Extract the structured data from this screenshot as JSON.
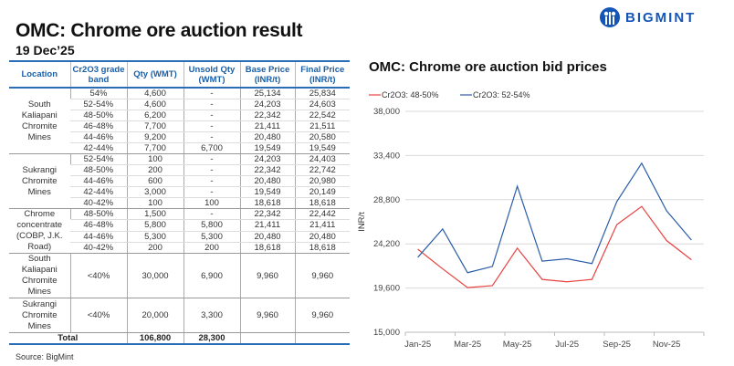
{
  "header": {
    "title": "OMC: Chrome ore auction result",
    "date": "19 Dec’25",
    "brand": "BIGMINT"
  },
  "table": {
    "columns": [
      "Location",
      "Cr2O3 grade band",
      "Qty (WMT)",
      "Unsold Qty (WMT)",
      "Base Price (INR/t)",
      "Final Price (INR/t)"
    ],
    "groups": [
      {
        "location": "South Kaliapani Chromite Mines",
        "rows": [
          [
            "54%",
            "4,600",
            "-",
            "25,134",
            "25,834"
          ],
          [
            "52-54%",
            "4,600",
            "-",
            "24,203",
            "24,603"
          ],
          [
            "48-50%",
            "6,200",
            "-",
            "22,342",
            "22,542"
          ],
          [
            "46-48%",
            "7,700",
            "-",
            "21,411",
            "21,511"
          ],
          [
            "44-46%",
            "9,200",
            "-",
            "20,480",
            "20,580"
          ],
          [
            "42-44%",
            "7,700",
            "6,700",
            "19,549",
            "19,549"
          ]
        ]
      },
      {
        "location": "Sukrangi Chromite Mines",
        "rows": [
          [
            "52-54%",
            "100",
            "-",
            "24,203",
            "24,403"
          ],
          [
            "48-50%",
            "200",
            "-",
            "22,342",
            "22,742"
          ],
          [
            "44-46%",
            "600",
            "-",
            "20,480",
            "20,980"
          ],
          [
            "42-44%",
            "3,000",
            "-",
            "19,549",
            "20,149"
          ],
          [
            "40-42%",
            "100",
            "100",
            "18,618",
            "18,618"
          ]
        ]
      },
      {
        "location": "Chrome concentrate (COBP, J.K. Road)",
        "rows": [
          [
            "48-50%",
            "1,500",
            "-",
            "22,342",
            "22,442"
          ],
          [
            "46-48%",
            "5,800",
            "5,800",
            "21,411",
            "21,411"
          ],
          [
            "44-46%",
            "5,300",
            "5,300",
            "20,480",
            "20,480"
          ],
          [
            "40-42%",
            "200",
            "200",
            "18,618",
            "18,618"
          ]
        ]
      },
      {
        "location": "South Kaliapani Chromite Mines",
        "rows": [
          [
            "<40%",
            "30,000",
            "6,900",
            "9,960",
            "9,960"
          ]
        ]
      },
      {
        "location": "Sukrangi Chromite Mines",
        "rows": [
          [
            "<40%",
            "20,000",
            "3,300",
            "9,960",
            "9,960"
          ]
        ]
      }
    ],
    "total": {
      "label": "Total",
      "qty": "106,800",
      "unsold": "28,300"
    },
    "source": "Source: BigMint"
  },
  "chart_data": {
    "type": "line",
    "title": "OMC: Chrome ore auction bid prices",
    "ylabel": "INR/t",
    "xlabel": "",
    "x": [
      "Jan-25",
      "Feb-25",
      "Mar-25",
      "Apr-25",
      "May-25",
      "Jun-25",
      "Jul-25",
      "Aug-25",
      "Sep-25",
      "Oct-25",
      "Nov-25",
      "Dec-25"
    ],
    "xtick_labels": [
      "Jan-25",
      "Mar-25",
      "May-25",
      "Jul-25",
      "Sep-25",
      "Nov-25"
    ],
    "yticks": [
      15000,
      19600,
      24200,
      28800,
      33400,
      38000
    ],
    "ytick_labels": [
      "15,000",
      "19,600",
      "24,200",
      "28,800",
      "33,400",
      "38,000"
    ],
    "ylim": [
      15000,
      38000
    ],
    "grid": true,
    "legend": "top-left",
    "series": [
      {
        "name": "Cr2O3: 48-50%",
        "color": "#e8423f",
        "values": [
          23650,
          21600,
          19650,
          19850,
          23750,
          20500,
          20250,
          20500,
          26200,
          28100,
          24550,
          22542
        ]
      },
      {
        "name": "Cr2O3: 52-54%",
        "color": "#2a5ca8",
        "values": [
          22800,
          25750,
          21200,
          21850,
          30200,
          22400,
          22650,
          22150,
          28600,
          32600,
          27650,
          24603
        ]
      }
    ]
  }
}
